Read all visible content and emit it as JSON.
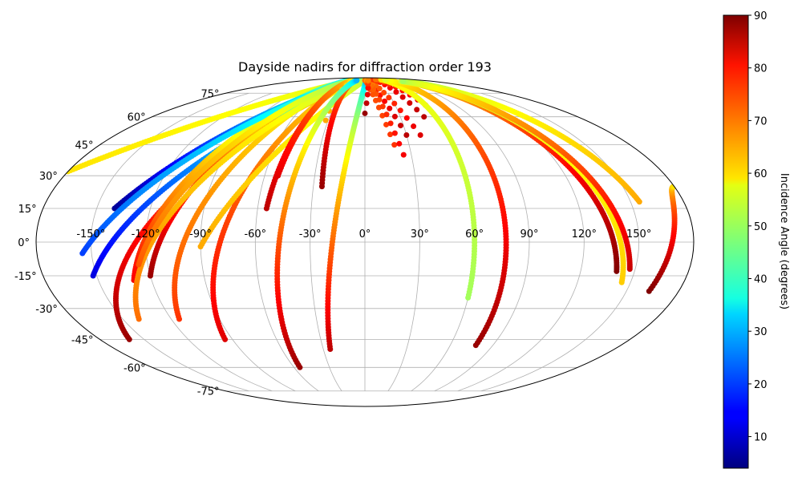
{
  "chart_data": {
    "type": "scatter",
    "projection": "mollweide",
    "title": "Dayside nadirs for diffraction order 193",
    "xlabel": "",
    "ylabel": "",
    "xlim": [
      -180,
      180
    ],
    "ylim": [
      -90,
      90
    ],
    "grid": true,
    "lon_tick_labels": [
      "-150°",
      "-120°",
      "-90°",
      "-60°",
      "-30°",
      "0°",
      "30°",
      "60°",
      "90°",
      "120°",
      "150°"
    ],
    "lat_tick_labels": [
      "-75°",
      "-60°",
      "-45°",
      "-30°",
      "-15°",
      "0°",
      "15°",
      "30°",
      "45°",
      "60°",
      "75°"
    ],
    "colorbar": {
      "label": "Incidence Angle (degrees)",
      "colormap": "jet",
      "range": [
        4,
        90
      ],
      "tick_labels": [
        "10",
        "20",
        "30",
        "40",
        "50",
        "60",
        "70",
        "80",
        "90"
      ]
    },
    "tracks": [
      {
        "lon0": -180,
        "lat0": 32,
        "lon1": -13,
        "lat1": 87,
        "inc0": 60,
        "inc1": 54,
        "dense": true
      },
      {
        "lon0": -95,
        "lat0": -45,
        "lon1": -25,
        "lat1": 85,
        "inc0": 82,
        "inc1": 52,
        "dense": true
      },
      {
        "lon0": -152,
        "lat0": -15,
        "lon1": -10,
        "lat1": 86,
        "inc0": 12,
        "inc1": 55,
        "dense": true
      },
      {
        "lon0": -160,
        "lat0": -45,
        "lon1": -5,
        "lat1": 86,
        "inc0": 88,
        "inc1": 50,
        "dense": true
      },
      {
        "lon0": -130,
        "lat0": -17,
        "lon1": -45,
        "lat1": 86,
        "inc0": 80,
        "inc1": 30,
        "dense": true
      },
      {
        "lon0": -120,
        "lat0": -15,
        "lon1": -40,
        "lat1": 86,
        "inc0": 88,
        "inc1": 35,
        "dense": true
      },
      {
        "lon0": -140,
        "lat0": 15,
        "lon1": -25,
        "lat1": 86,
        "inc0": 6,
        "inc1": 55,
        "dense": true
      },
      {
        "lon0": -155,
        "lat0": -5,
        "lon1": -20,
        "lat1": 86,
        "inc0": 20,
        "inc1": 52,
        "dense": true
      },
      {
        "lon0": -115,
        "lat0": -35,
        "lon1": -30,
        "lat1": 86,
        "inc0": 75,
        "inc1": 48,
        "dense": true
      },
      {
        "lon0": -140,
        "lat0": -35,
        "lon1": -15,
        "lat1": 86,
        "inc0": 70,
        "inc1": 48,
        "dense": true
      },
      {
        "lon0": -125,
        "lat0": -10,
        "lon1": -35,
        "lat1": 86,
        "inc0": 72,
        "inc1": 45,
        "dense": true
      },
      {
        "lon0": -90,
        "lat0": -2,
        "lon1": 10,
        "lat1": 87,
        "inc0": 65,
        "inc1": 50,
        "dense": true
      },
      {
        "lon0": -52,
        "lat0": 30,
        "lon1": -40,
        "lat1": 86,
        "inc0": 82,
        "inc1": 55,
        "dense": true
      },
      {
        "lon0": -55,
        "lat0": 15,
        "lon1": -40,
        "lat1": 86,
        "inc0": 85,
        "inc1": 60,
        "dense": true
      },
      {
        "lon0": -32,
        "lat0": 58,
        "lon1": -35,
        "lat1": 86,
        "inc0": 65,
        "inc1": 58,
        "dense": false
      },
      {
        "lon0": -25,
        "lat0": 25,
        "lon1": -30,
        "lat1": 86,
        "inc0": 88,
        "inc1": 62,
        "dense": true
      },
      {
        "lon0": -55,
        "lat0": -60,
        "lon1": -25,
        "lat1": 86,
        "inc0": 88,
        "inc1": 30,
        "dense": true
      },
      {
        "lon0": -25,
        "lat0": -50,
        "lon1": 5,
        "lat1": 86,
        "inc0": 85,
        "inc1": 25,
        "dense": true
      },
      {
        "lon0": 20,
        "lat0": 45,
        "lon1": 0,
        "lat1": 86,
        "inc0": 75,
        "inc1": 70,
        "dense": false
      },
      {
        "lon0": 30,
        "lat0": 50,
        "lon1": 5,
        "lat1": 86,
        "inc0": 85,
        "inc1": 70,
        "dense": false
      },
      {
        "lon0": 40,
        "lat0": 50,
        "lon1": 10,
        "lat1": 86,
        "inc0": 82,
        "inc1": 65,
        "dense": false
      },
      {
        "lon0": 25,
        "lat0": 40,
        "lon1": 5,
        "lat1": 86,
        "inc0": 80,
        "inc1": 66,
        "dense": false
      },
      {
        "lon0": 50,
        "lat0": 60,
        "lon1": 30,
        "lat1": 87,
        "inc0": 85,
        "inc1": 75,
        "dense": false
      },
      {
        "lon0": 0,
        "lat0": 62,
        "lon1": 10,
        "lat1": 86,
        "inc0": 88,
        "inc1": 68,
        "dense": false
      },
      {
        "lon0": 60,
        "lat0": 67,
        "lon1": 40,
        "lat1": 87,
        "inc0": 82,
        "inc1": 70,
        "dense": false
      },
      {
        "lon0": 60,
        "lat0": -25,
        "lon1": 60,
        "lat1": 87,
        "inc0": 50,
        "inc1": 60,
        "dense": true
      },
      {
        "lon0": 78,
        "lat0": -48,
        "lon1": 75,
        "lat1": 87,
        "inc0": 88,
        "inc1": 55,
        "dense": true
      },
      {
        "lon0": 140,
        "lat0": -13,
        "lon1": 95,
        "lat1": 85,
        "inc0": 90,
        "inc1": 55,
        "dense": true
      },
      {
        "lon0": 145,
        "lat0": -18,
        "lon1": 100,
        "lat1": 85,
        "inc0": 62,
        "inc1": 50,
        "dense": true
      },
      {
        "lon0": 155,
        "lat0": 18,
        "lon1": 110,
        "lat1": 85,
        "inc0": 65,
        "inc1": 50,
        "dense": true
      },
      {
        "lon0": 147,
        "lat0": -12,
        "lon1": 100,
        "lat1": 85,
        "inc0": 84,
        "inc1": 50,
        "dense": true
      },
      {
        "lon0": 163,
        "lat0": -22,
        "lon1": 180,
        "lat1": 25,
        "inc0": 90,
        "inc1": 60,
        "dense": true
      }
    ]
  }
}
